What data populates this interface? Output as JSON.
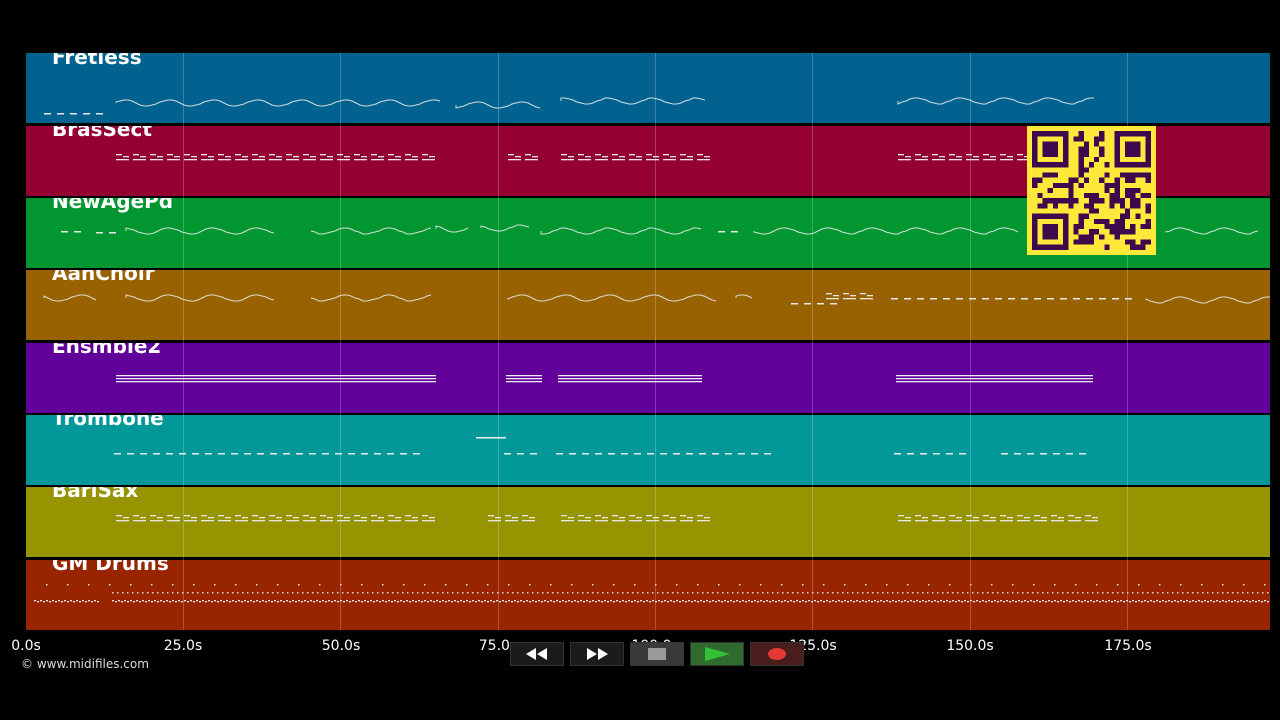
{
  "tracks": [
    {
      "name": "Fretless",
      "color": "#02628f"
    },
    {
      "name": "BrasSect",
      "color": "#950032"
    },
    {
      "name": "NewAgePd",
      "color": "#01962f"
    },
    {
      "name": "AahChoir",
      "color": "#986200"
    },
    {
      "name": "Ensmble2",
      "color": "#62009a"
    },
    {
      "name": "Trombone",
      "color": "#02989a"
    },
    {
      "name": "BariSax",
      "color": "#969400"
    },
    {
      "name": "GM Drums",
      "color": "#982400"
    }
  ],
  "timeline": {
    "unit": "s",
    "range_seconds": [
      0,
      197.5
    ],
    "ticks": [
      "0.0s",
      "25.0s",
      "50.0s",
      "75.0s",
      "100.0s",
      "125.0s",
      "150.0s",
      "175.0s"
    ]
  },
  "copyright": "© www.midifiles.com",
  "transport": {
    "buttons": [
      "rewind",
      "fast-forward",
      "stop",
      "play",
      "record"
    ],
    "icons": {
      "rewind": "rewind-icon",
      "fast-forward": "fast-forward-icon",
      "stop": "stop-icon",
      "play": "play-icon",
      "record": "record-icon"
    },
    "colors": {
      "play": "#35c135",
      "record": "#e53935",
      "stop": "#999999"
    }
  },
  "qr_code": {
    "foreground": "#ffe83a",
    "background": "#3d0a4d"
  }
}
